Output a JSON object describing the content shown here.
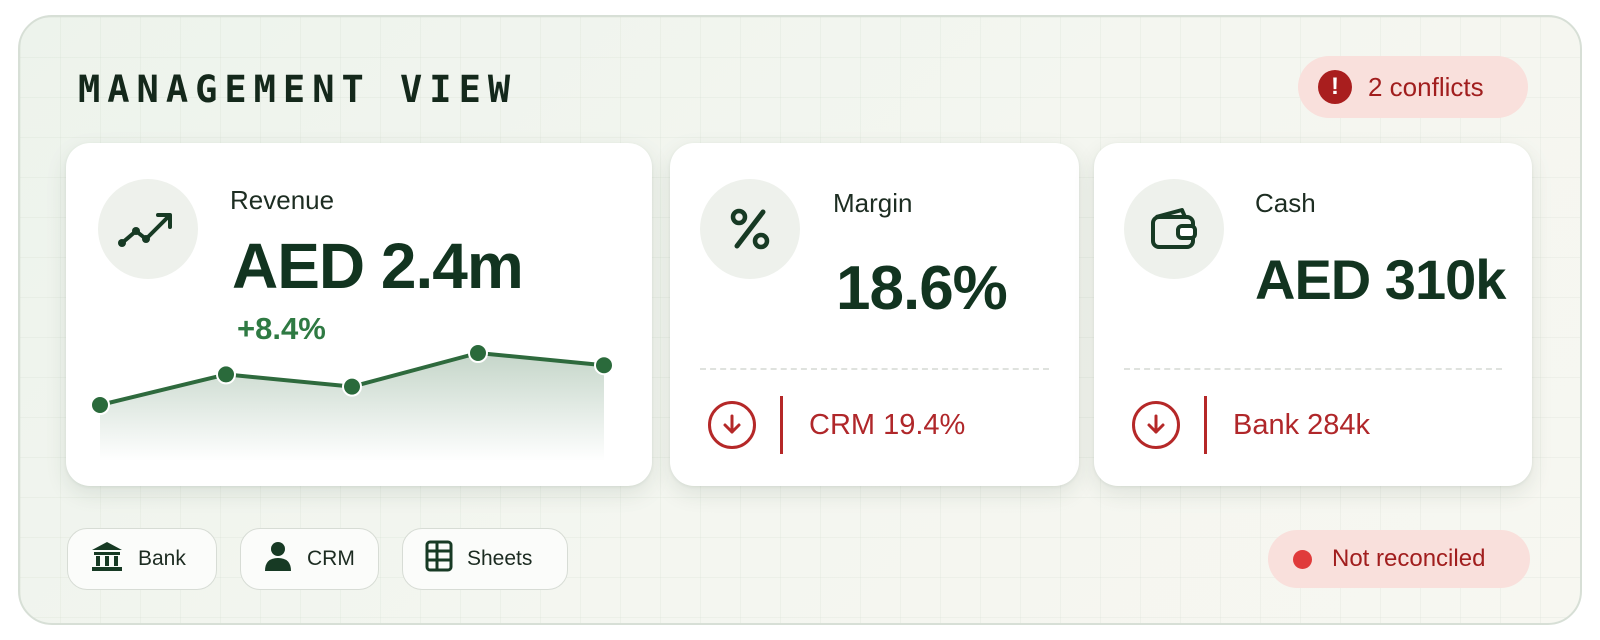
{
  "header": {
    "title": "MANAGEMENT VIEW",
    "conflicts_label": "2 conflicts"
  },
  "cards": {
    "revenue": {
      "icon": "trend-up-icon",
      "label": "Revenue",
      "value": "AED 2.4m",
      "delta": "+8.4%",
      "sparkline_values": [
        1.0,
        2.0,
        1.6,
        2.7,
        2.3
      ]
    },
    "margin": {
      "icon": "percent-icon",
      "label": "Margin",
      "value": "18.6%",
      "compare_icon": "arrow-down-circle-icon",
      "compare_text": "CRM 19.4%"
    },
    "cash": {
      "icon": "wallet-icon",
      "label": "Cash",
      "value": "AED 310k",
      "compare_icon": "arrow-down-circle-icon",
      "compare_text": "Bank 284k"
    }
  },
  "sources": [
    {
      "label": "Bank",
      "icon": "bank-icon"
    },
    {
      "label": "CRM",
      "icon": "user-icon"
    },
    {
      "label": "Sheets",
      "icon": "spreadsheet-icon"
    }
  ],
  "status": {
    "label": "Not reconciled"
  },
  "colors": {
    "brand_green": "#1d4a2c",
    "positive": "#2f7a43",
    "alert_red": "#b52828",
    "alert_bg": "#f9e0dc"
  }
}
